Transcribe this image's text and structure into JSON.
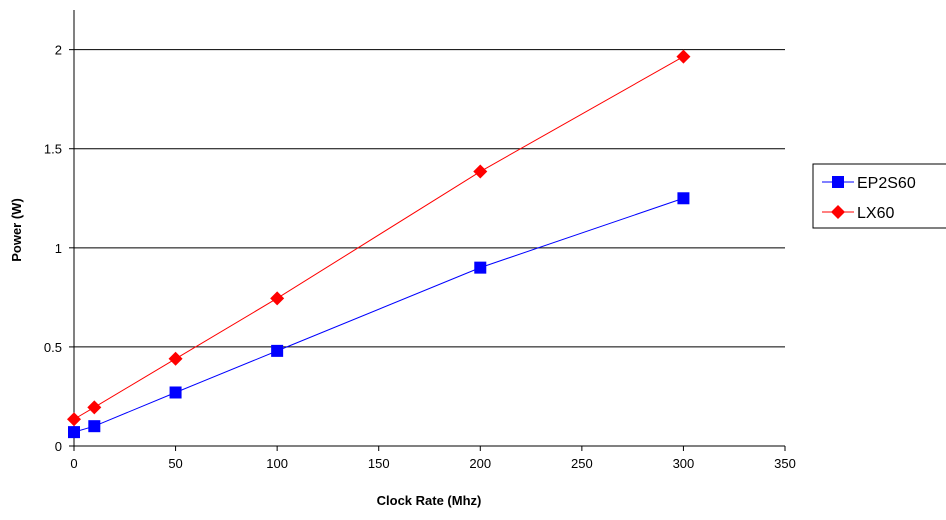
{
  "chart_data": {
    "type": "line",
    "title": "",
    "xlabel": "Clock Rate (Mhz)",
    "ylabel": "Power (W)",
    "xlim": [
      0,
      350
    ],
    "ylim": [
      0,
      2.2
    ],
    "xticks": [
      0,
      50,
      100,
      150,
      200,
      250,
      300,
      350
    ],
    "yticks": [
      0,
      0.5,
      1,
      1.5,
      2
    ],
    "xtick_labels": [
      "0",
      "50",
      "100",
      "150",
      "200",
      "250",
      "300",
      "350"
    ],
    "ytick_labels": [
      "0",
      "0.5",
      "1",
      "1.5",
      "2"
    ],
    "grid": "horizontal",
    "legend_position": "right",
    "series": [
      {
        "name": "EP2S60",
        "color": "#0000FF",
        "marker": "square",
        "x": [
          0,
          10,
          50,
          100,
          200,
          300
        ],
        "y": [
          0.07,
          0.1,
          0.27,
          0.48,
          0.9,
          1.25
        ]
      },
      {
        "name": "LX60",
        "color": "#FF0000",
        "marker": "diamond",
        "x": [
          0,
          10,
          50,
          100,
          200,
          300
        ],
        "y": [
          0.135,
          0.195,
          0.44,
          0.745,
          1.385,
          1.965
        ]
      }
    ]
  }
}
